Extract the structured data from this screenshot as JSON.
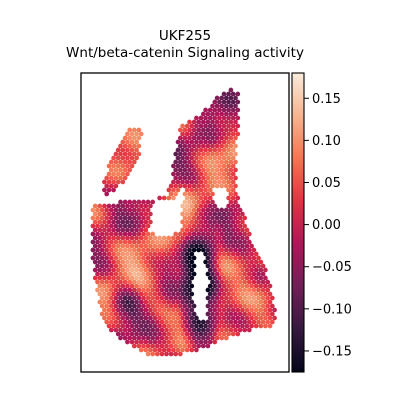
{
  "chart_data": {
    "type": "scatter",
    "subtype": "spatial-hexagonal-spot-map",
    "title_line1": "UKF255",
    "title_line2": "Wnt/beta-catenin Signaling activity",
    "xlabel": "",
    "ylabel": "",
    "x_axis": {
      "ticks": "none",
      "grid": false
    },
    "y_axis": {
      "ticks": "none",
      "grid": false
    },
    "colormap": "rocket",
    "colormap_stops": [
      "#03051a",
      "#35193e",
      "#701f57",
      "#ad1759",
      "#e13342",
      "#f37651",
      "#f6b48f",
      "#faebdd"
    ],
    "colorbar": {
      "position": "right",
      "vmin": -0.175,
      "vmax": 0.18,
      "ticks": [
        0.15,
        0.1,
        0.05,
        0.0,
        -0.05,
        -0.1,
        -0.15
      ],
      "tick_labels": [
        "0.15",
        "0.10",
        "0.05",
        "0.00",
        "−0.05",
        "−0.10",
        "−0.15"
      ]
    },
    "values": {
      "min": -0.17,
      "max": 0.17,
      "dominant_range": [
        -0.05,
        0.1
      ],
      "low_value_region": "central vertical gap of the tissue (~ -0.15)"
    }
  }
}
